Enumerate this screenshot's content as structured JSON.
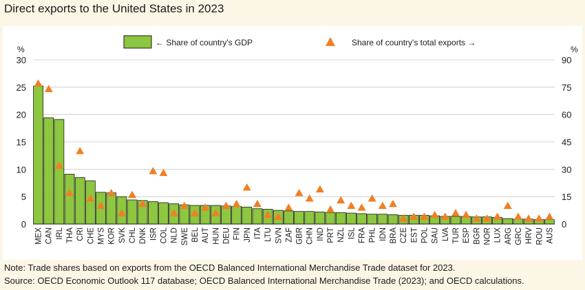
{
  "title": "Direct exports to the United States in 2023",
  "notes": {
    "note": "Note: Trade shares based on exports from the OECD Balanced International Merchandise Trade dataset for 2023.",
    "source": "Source: OECD Economic Outlook 117 database; OECD Balanced International Merchandise Trade (2023); and OECD calculations."
  },
  "colors": {
    "bar": "#8dc63f",
    "bar_edge": "#1a1a1a",
    "marker": "#f07f24",
    "background": "#fbf6e6",
    "panel": "#ffffff"
  },
  "chart_data": {
    "type": "bar",
    "title": "Direct exports to the United States in 2023",
    "left_axis": {
      "unit": "%",
      "ylim": [
        0,
        30
      ],
      "ticks": [
        0,
        5,
        10,
        15,
        20,
        25,
        30
      ]
    },
    "right_axis": {
      "unit": "%",
      "ylim": [
        0,
        90
      ],
      "ticks": [
        0,
        15,
        30,
        45,
        60,
        75,
        90
      ]
    },
    "legend": {
      "placement": "top",
      "bar_label": "← Share of country's GDP",
      "marker_label": "Share of country's total exports →"
    },
    "categories": [
      "MEX",
      "CAN",
      "IRL",
      "THA",
      "CRI",
      "CHE",
      "MYS",
      "KOR",
      "SVK",
      "CHL",
      "DNK",
      "ISR",
      "COL",
      "NLD",
      "SWE",
      "BEL",
      "AUT",
      "HUN",
      "DEU",
      "FIN",
      "JPN",
      "ITA",
      "LTU",
      "SVN",
      "ZAF",
      "GBR",
      "CHN",
      "IND",
      "PRT",
      "NZL",
      "ISL",
      "FRA",
      "PHL",
      "IDN",
      "BRA",
      "CZE",
      "EST",
      "POL",
      "SAU",
      "LVA",
      "TUR",
      "ESP",
      "BGR",
      "NOR",
      "LUX",
      "ARG",
      "GRC",
      "HRV",
      "ROU",
      "AUS"
    ],
    "series": [
      {
        "name": "Share of country's GDP",
        "type": "bar",
        "axis": "left",
        "values": [
          25.2,
          19.4,
          19.1,
          9.1,
          8.5,
          7.9,
          5.8,
          5.7,
          5.0,
          4.4,
          4.3,
          4.1,
          3.9,
          3.7,
          3.5,
          3.4,
          3.4,
          3.4,
          3.3,
          3.2,
          3.1,
          2.8,
          2.7,
          2.5,
          2.4,
          2.3,
          2.3,
          2.2,
          2.1,
          2.1,
          2.0,
          1.9,
          1.8,
          1.8,
          1.7,
          1.6,
          1.6,
          1.6,
          1.5,
          1.4,
          1.4,
          1.4,
          1.3,
          1.3,
          1.2,
          1.0,
          0.9,
          0.9,
          0.8,
          0.8
        ]
      },
      {
        "name": "Share of country's total exports",
        "type": "scatter",
        "axis": "right",
        "values": [
          77,
          74,
          32,
          17,
          40,
          14,
          10,
          17,
          6,
          16,
          11,
          29,
          28,
          6,
          10,
          6,
          9,
          6,
          10,
          11,
          20,
          11,
          5,
          4,
          9,
          17,
          14,
          19,
          8,
          13,
          10,
          9,
          14,
          10,
          11,
          3,
          4,
          4,
          5,
          4,
          6,
          5,
          3,
          3,
          4,
          10,
          4,
          3,
          3,
          4
        ]
      }
    ]
  }
}
